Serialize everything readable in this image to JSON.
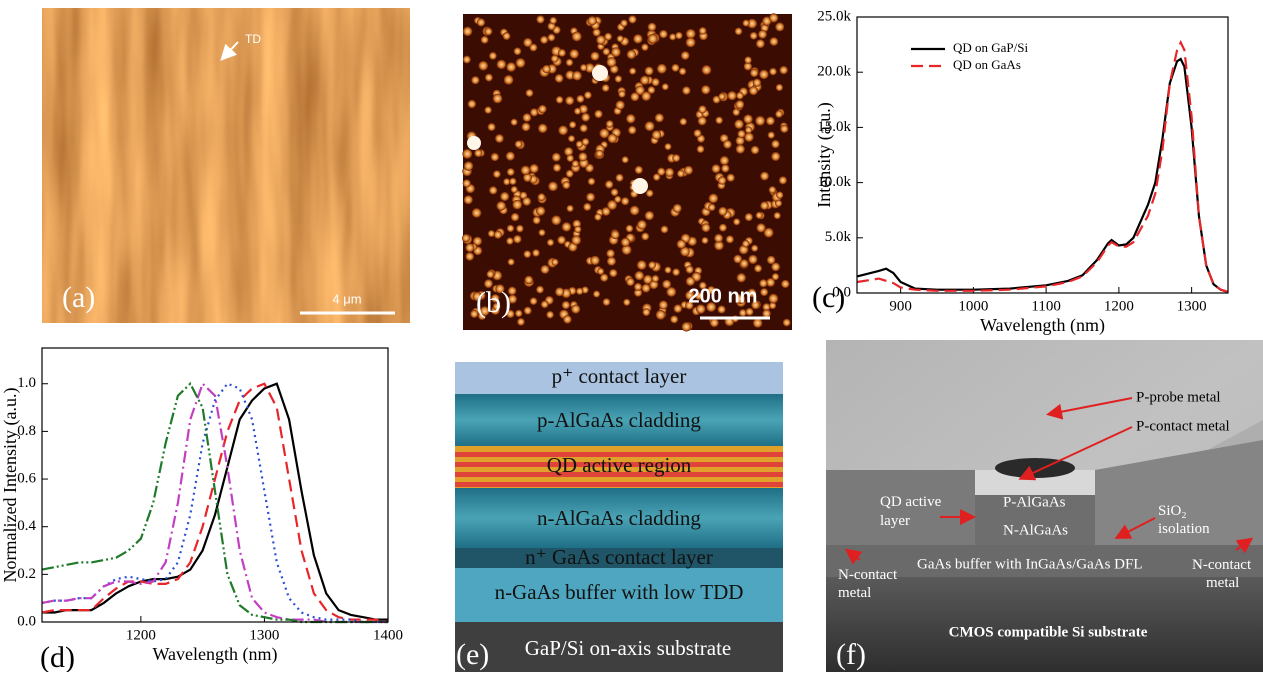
{
  "panels": {
    "a": {
      "label": "(a)",
      "annotation": "TD",
      "scale_bar": "4 μm"
    },
    "b": {
      "label": "(b)",
      "scale_bar": "200 nm"
    },
    "c": {
      "label": "(c)"
    },
    "d": {
      "label": "(d)"
    },
    "e": {
      "label": "(e)",
      "layers": [
        "p⁺ contact layer",
        "p-AlGaAs cladding",
        "QD active region",
        "n-AlGaAs cladding",
        "n⁺ GaAs contact layer",
        "n-GaAs buffer with low TDD",
        "GaP/Si on-axis substrate"
      ]
    },
    "f": {
      "label": "(f)",
      "annotations": {
        "probe": "P-probe metal",
        "contact": "P-contact metal",
        "qd": [
          "QD active",
          "layer"
        ],
        "palgaas": "P-AlGaAs",
        "nalgaas": "N-AlGaAs",
        "sio2": [
          "SiO₂",
          "isolation"
        ],
        "buffer": "GaAs buffer with InGaAs/GaAs DFL",
        "ncontact_left": [
          "N-contact",
          "metal"
        ],
        "ncontact_right": [
          "N-contact",
          "metal"
        ],
        "substrate": "CMOS compatible Si substrate"
      }
    }
  },
  "chart_data": [
    {
      "type": "line",
      "x_label": "Wavelength (nm)",
      "y_label": "Intensity (a.u.)",
      "legend": "upper left",
      "xlim": [
        840,
        1350
      ],
      "xticks": [
        900,
        1000,
        1100,
        1200,
        1300
      ],
      "ylim": [
        0,
        25000
      ],
      "yticks": [
        {
          "value": 0,
          "label": "0.0"
        },
        {
          "value": 5000,
          "label": "5.0k"
        },
        {
          "value": 10000,
          "label": "10.0k"
        },
        {
          "value": 15000,
          "label": "15.0k"
        },
        {
          "value": 20000,
          "label": "20.0k"
        },
        {
          "value": 25000,
          "label": "25.0k"
        }
      ],
      "series": [
        {
          "name": "QD on GaP/Si",
          "color": "#000000",
          "dash": "solid",
          "x": [
            840,
            870,
            880,
            890,
            900,
            920,
            950,
            1000,
            1050,
            1100,
            1130,
            1150,
            1170,
            1185,
            1190,
            1200,
            1210,
            1220,
            1240,
            1250,
            1260,
            1270,
            1280,
            1285,
            1290,
            1300,
            1310,
            1320,
            1330,
            1340,
            1350
          ],
          "values": [
            1500,
            2000,
            2200,
            1800,
            1000,
            400,
            300,
            300,
            400,
            700,
            1100,
            1600,
            3000,
            4500,
            4800,
            4300,
            4400,
            5000,
            8000,
            10000,
            14000,
            19000,
            21000,
            21200,
            20500,
            15000,
            7000,
            2500,
            800,
            300,
            100
          ]
        },
        {
          "name": "QD on GaAs",
          "color": "#e8262a",
          "dash": "dashed",
          "x": [
            840,
            870,
            890,
            900,
            920,
            950,
            1000,
            1050,
            1100,
            1130,
            1150,
            1170,
            1185,
            1190,
            1200,
            1210,
            1220,
            1240,
            1250,
            1260,
            1270,
            1280,
            1285,
            1290,
            1300,
            1310,
            1320,
            1330,
            1340,
            1350
          ],
          "values": [
            1000,
            1300,
            900,
            500,
            300,
            200,
            200,
            300,
            600,
            1000,
            1500,
            2800,
            4300,
            4600,
            4200,
            4200,
            4600,
            7000,
            9000,
            13000,
            19000,
            22000,
            22700,
            22000,
            16000,
            7000,
            2500,
            800,
            300,
            100
          ]
        }
      ]
    },
    {
      "type": "line",
      "x_label": "Wavelength (nm)",
      "y_label": "Normalized Intensity (a.u.)",
      "xlim": [
        1120,
        1400
      ],
      "xticks": [
        1200,
        1300,
        1400
      ],
      "ylim": [
        0,
        1.15
      ],
      "yticks": [
        {
          "value": 0,
          "label": "0.0"
        },
        {
          "value": 0.2,
          "label": "0.2"
        },
        {
          "value": 0.4,
          "label": "0.4"
        },
        {
          "value": 0.6,
          "label": "0.6"
        },
        {
          "value": 0.8,
          "label": "0.8"
        },
        {
          "value": 1,
          "label": "1.0"
        }
      ],
      "x": [
        1120,
        1130,
        1140,
        1150,
        1160,
        1170,
        1180,
        1190,
        1200,
        1210,
        1220,
        1230,
        1240,
        1250,
        1260,
        1270,
        1280,
        1290,
        1300,
        1310,
        1320,
        1330,
        1340,
        1350,
        1360,
        1370,
        1380,
        1390,
        1400
      ],
      "series": [
        {
          "color": "#000000",
          "dash": "solid",
          "values": [
            0.04,
            0.04,
            0.05,
            0.05,
            0.05,
            0.08,
            0.12,
            0.15,
            0.17,
            0.18,
            0.18,
            0.19,
            0.22,
            0.3,
            0.45,
            0.65,
            0.85,
            0.93,
            0.98,
            1.0,
            0.85,
            0.55,
            0.28,
            0.12,
            0.05,
            0.03,
            0.02,
            0.01,
            0.01
          ]
        },
        {
          "color": "#e8262a",
          "dash": "dashed",
          "values": [
            0.04,
            0.05,
            0.05,
            0.05,
            0.05,
            0.1,
            0.14,
            0.17,
            0.17,
            0.16,
            0.16,
            0.18,
            0.25,
            0.4,
            0.6,
            0.8,
            0.93,
            0.98,
            1.0,
            0.9,
            0.6,
            0.3,
            0.12,
            0.05,
            0.02,
            0.01,
            0.01,
            0.01,
            0.0
          ]
        },
        {
          "color": "#2a4fd6",
          "dash": "dotted",
          "values": [
            0.08,
            0.09,
            0.09,
            0.1,
            0.1,
            0.15,
            0.18,
            0.19,
            0.18,
            0.17,
            0.18,
            0.25,
            0.45,
            0.75,
            0.93,
            1.0,
            0.98,
            0.85,
            0.55,
            0.25,
            0.1,
            0.04,
            0.02,
            0.01,
            0.01,
            0.01,
            0,
            0,
            0
          ]
        },
        {
          "color": "#c23fc2",
          "dash": "dashdot",
          "values": [
            0.08,
            0.09,
            0.09,
            0.1,
            0.1,
            0.15,
            0.17,
            0.17,
            0.16,
            0.17,
            0.25,
            0.5,
            0.85,
            1.0,
            0.95,
            0.65,
            0.3,
            0.1,
            0.04,
            0.02,
            0.01,
            0.01,
            0.01,
            0,
            0,
            0,
            0,
            0,
            0
          ]
        },
        {
          "color": "#1f7a2a",
          "dash": "dashdotdot",
          "values": [
            0.22,
            0.23,
            0.24,
            0.25,
            0.25,
            0.26,
            0.27,
            0.3,
            0.35,
            0.5,
            0.75,
            0.95,
            1.0,
            0.9,
            0.55,
            0.2,
            0.07,
            0.03,
            0.02,
            0.01,
            0.01,
            0,
            0,
            0,
            0,
            0,
            0,
            0,
            0
          ]
        }
      ]
    }
  ]
}
